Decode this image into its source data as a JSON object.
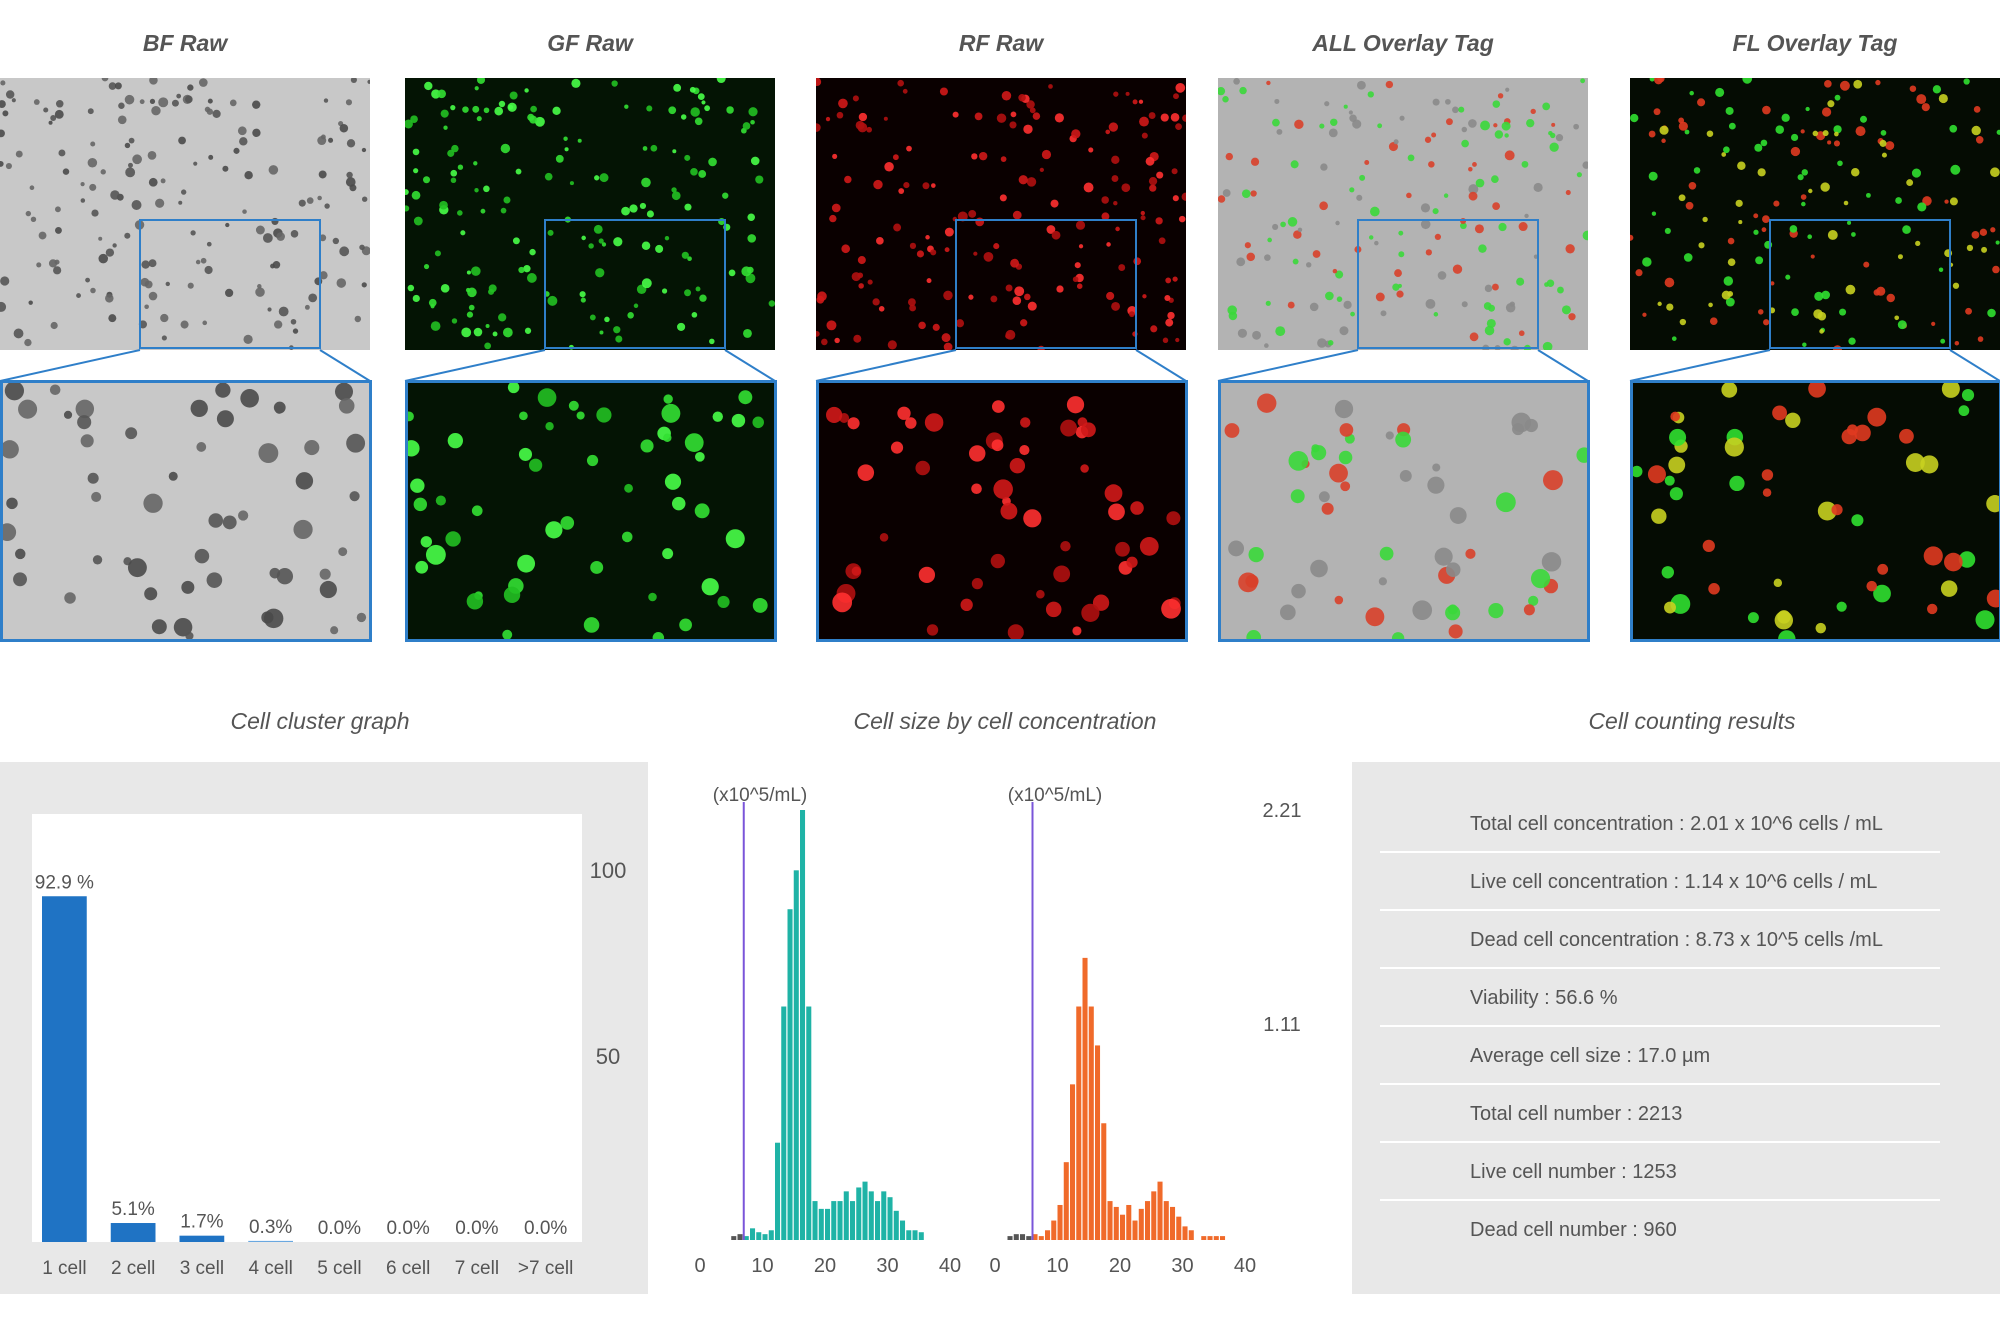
{
  "panels": [
    {
      "title": "BF Raw",
      "kind": "bf"
    },
    {
      "title": "GF Raw",
      "kind": "gf"
    },
    {
      "title": "RF Raw",
      "kind": "rf"
    },
    {
      "title": "ALL Overlay Tag",
      "kind": "all"
    },
    {
      "title": "FL Overlay Tag",
      "kind": "fl"
    }
  ],
  "colors": {
    "zoom_frame": "#2f7fc9",
    "bar": "#1f73c4",
    "live_hist": "#1fb3a6",
    "dead_hist": "#f06a2a",
    "gate_line": "#7a55d9",
    "panel_bg": "#e8e8e8"
  },
  "cluster_section": {
    "title": "Cell cluster graph"
  },
  "size_section": {
    "title": "Cell size by cell concentration"
  },
  "results_section": {
    "title": "Cell counting results",
    "rows": [
      "Total cell concentration : 2.01 x 10^6 cells / mL",
      "Live cell concentration : 1.14 x 10^6 cells / mL",
      "Dead cell concentration : 8.73 x 10^5 cells /mL",
      "Viability : 56.6 %",
      "Average cell size : 17.0 µm",
      "Total cell number : 2213",
      "Live cell number : 1253",
      "Dead cell number : 960"
    ]
  },
  "chart_data": [
    {
      "type": "bar",
      "categories": [
        "1 cell",
        "2 cell",
        "3 cell",
        "4 cell",
        "5 cell",
        "6 cell",
        "7 cell",
        ">7 cell"
      ],
      "values": [
        92.9,
        5.1,
        1.7,
        0.3,
        0.0,
        0.0,
        0.0,
        0.0
      ],
      "data_labels": [
        "92.9 %",
        "5.1%",
        "1.7%",
        "0.3%",
        "0.0%",
        "0.0%",
        "0.0%",
        "0.0%"
      ],
      "y_ticks": [
        "100",
        "50"
      ],
      "ylim": [
        0,
        115
      ]
    },
    {
      "type": "bar",
      "ylabel": "(x10^5/mL)",
      "x_ticks": [
        "0",
        "10",
        "20",
        "30",
        "40"
      ],
      "xlim": [
        0,
        40
      ],
      "gate": 7,
      "ylim": [
        0,
        2.21
      ],
      "y_ticks": [
        "2.21",
        "1.11"
      ],
      "series": [
        {
          "bins": [
            5,
            6,
            7,
            8,
            9,
            10,
            11,
            12,
            13,
            14,
            15,
            16,
            17,
            18,
            19,
            20,
            21,
            22,
            23,
            24,
            25,
            26,
            27,
            28,
            29,
            30,
            31,
            32,
            33,
            34,
            35
          ],
          "values": [
            0.02,
            0.03,
            0.02,
            0.06,
            0.04,
            0.03,
            0.05,
            0.5,
            1.2,
            1.7,
            1.9,
            2.21,
            1.2,
            0.2,
            0.16,
            0.16,
            0.2,
            0.2,
            0.25,
            0.2,
            0.27,
            0.3,
            0.25,
            0.2,
            0.25,
            0.22,
            0.15,
            0.1,
            0.05,
            0.05,
            0.04
          ]
        }
      ]
    },
    {
      "type": "bar",
      "ylabel": "(x10^5/mL)",
      "x_ticks": [
        "0",
        "10",
        "20",
        "30",
        "40"
      ],
      "xlim": [
        0,
        40
      ],
      "gate": 6,
      "ylim": [
        0,
        2.21
      ],
      "series": [
        {
          "bins": [
            2,
            3,
            4,
            5,
            6,
            7,
            8,
            9,
            10,
            11,
            12,
            13,
            14,
            15,
            16,
            17,
            18,
            19,
            20,
            21,
            22,
            23,
            24,
            25,
            26,
            27,
            28,
            29,
            30,
            31,
            33,
            34,
            35,
            36
          ],
          "values": [
            0.02,
            0.03,
            0.03,
            0.02,
            0.03,
            0.02,
            0.05,
            0.1,
            0.18,
            0.4,
            0.8,
            1.2,
            1.45,
            1.2,
            1.0,
            0.6,
            0.2,
            0.17,
            0.13,
            0.18,
            0.1,
            0.16,
            0.2,
            0.25,
            0.3,
            0.2,
            0.17,
            0.12,
            0.07,
            0.05,
            0.02,
            0.02,
            0.02,
            0.02
          ]
        }
      ]
    }
  ]
}
